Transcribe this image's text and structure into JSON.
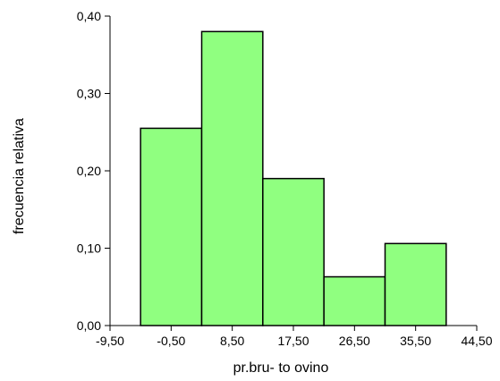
{
  "chart_data": {
    "type": "bar",
    "title": "",
    "xlabel": "pr.bru- to ovino",
    "ylabel": "frecuencia relativa",
    "xlim": [
      -9.5,
      44.5
    ],
    "ylim": [
      0,
      0.4
    ],
    "x_ticks": [
      "-9,50",
      "-0,50",
      "8,50",
      "17,50",
      "26,50",
      "35,50",
      "44,50"
    ],
    "y_ticks": [
      "0,00",
      "0,10",
      "0,20",
      "0,30",
      "0,40"
    ],
    "bins": [
      {
        "x0": -5.0,
        "x1": 4.0,
        "value": 0.255
      },
      {
        "x0": 4.0,
        "x1": 13.0,
        "value": 0.38
      },
      {
        "x0": 13.0,
        "x1": 22.0,
        "value": 0.19
      },
      {
        "x0": 22.0,
        "x1": 31.0,
        "value": 0.063
      },
      {
        "x0": 31.0,
        "x1": 40.0,
        "value": 0.106
      }
    ],
    "bar_color": "#90ff80",
    "edge_color": "#000000",
    "grid": false,
    "legend": "none"
  }
}
